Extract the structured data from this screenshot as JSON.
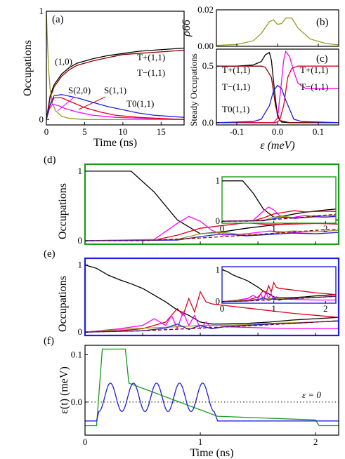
{
  "colors": {
    "black": "#000000",
    "red": "#e0001b",
    "blue": "#1f1fe0",
    "magenta": "#ff00ff",
    "olive": "#9a9a20",
    "green": "#1a9a1a",
    "darkred": "#8b0000",
    "frame_d": "#1a9a1a",
    "frame_e": "#1f1fe0"
  },
  "chart_data": [
    {
      "id": "a",
      "panel": "(a)",
      "type": "line",
      "xlabel": "Time (ns)",
      "ylabel": "Occupations",
      "xlim": [
        0,
        18
      ],
      "ylim": [
        -0.05,
        1.0
      ],
      "xticks": [
        "0",
        "5",
        "10",
        "15"
      ],
      "yticks": [
        "0",
        "1"
      ],
      "annotations": [
        "T+(1,1)",
        "T−(1,1)",
        "(1,0)",
        "S(2,0)",
        "S(1,1)",
        "T0(1,1)"
      ],
      "series": [
        {
          "name": "T+(1,1)",
          "color": "black",
          "x": [
            0,
            0.5,
            1,
            2,
            3,
            4,
            6,
            8,
            10,
            12,
            14,
            16,
            18
          ],
          "y": [
            0,
            0.22,
            0.32,
            0.42,
            0.48,
            0.52,
            0.56,
            0.59,
            0.61,
            0.63,
            0.64,
            0.65,
            0.66
          ]
        },
        {
          "name": "T−(1,1)",
          "color": "darkred",
          "x": [
            0,
            0.5,
            1,
            2,
            3,
            4,
            6,
            8,
            10,
            12,
            14,
            16,
            18
          ],
          "y": [
            0,
            0.2,
            0.3,
            0.4,
            0.46,
            0.5,
            0.54,
            0.57,
            0.6,
            0.61,
            0.62,
            0.63,
            0.64
          ]
        },
        {
          "name": "(1,0)",
          "color": "olive",
          "x": [
            0,
            0.15,
            0.3,
            0.5,
            0.8,
            1.2,
            2,
            3,
            5,
            18
          ],
          "y": [
            1.0,
            0.7,
            0.45,
            0.28,
            0.15,
            0.08,
            0.03,
            0.01,
            0.0,
            0.0
          ]
        },
        {
          "name": "S(2,0)",
          "color": "magenta",
          "x": [
            0,
            0.4,
            0.8,
            1.5,
            2.5,
            4,
            6,
            9,
            13,
            18
          ],
          "y": [
            0,
            0.1,
            0.14,
            0.13,
            0.1,
            0.07,
            0.04,
            0.02,
            0.01,
            0.0
          ]
        },
        {
          "name": "S(1,1)",
          "color": "red",
          "x": [
            0,
            0.4,
            1,
            2,
            3,
            5,
            7,
            9,
            12,
            18
          ],
          "y": [
            0,
            0.12,
            0.2,
            0.2,
            0.17,
            0.11,
            0.07,
            0.04,
            0.02,
            0.0
          ]
        },
        {
          "name": "T0(1,1)",
          "color": "blue",
          "x": [
            0,
            0.5,
            1,
            2,
            4,
            6,
            8,
            10,
            12,
            14,
            16,
            18
          ],
          "y": [
            0,
            0.14,
            0.22,
            0.23,
            0.2,
            0.16,
            0.12,
            0.09,
            0.06,
            0.04,
            0.03,
            0.02
          ]
        }
      ]
    },
    {
      "id": "b",
      "panel": "(b)",
      "type": "line",
      "ylabel": "ρ66",
      "xlim": [
        -0.15,
        0.15
      ],
      "ylim": [
        0,
        0.02
      ],
      "yticks": [
        "0.00",
        "0.02"
      ],
      "series": [
        {
          "name": "",
          "color": "olive",
          "x": [
            -0.15,
            -0.1,
            -0.06,
            -0.04,
            -0.02,
            -0.01,
            0.0,
            0.01,
            0.02,
            0.035,
            0.05,
            0.08,
            0.12,
            0.15
          ],
          "y": [
            0.0005,
            0.001,
            0.003,
            0.007,
            0.0135,
            0.0145,
            0.012,
            0.0125,
            0.0155,
            0.0155,
            0.01,
            0.004,
            0.0015,
            0.0008
          ]
        }
      ]
    },
    {
      "id": "c",
      "panel": "(c)",
      "type": "line",
      "xlabel": "ε (meV)",
      "ylabel": "Steady Occupations",
      "xlim": [
        -0.15,
        0.15
      ],
      "ylim": [
        -0.02,
        0.65
      ],
      "xticks": [
        "-0.1",
        "0.0",
        "0.1"
      ],
      "yticks": [
        "0.0",
        "0.5"
      ],
      "annotations": [
        "T+(1,1)",
        "T−(1,1)",
        "T0(1,1)",
        "T+(1,1)",
        "T−(1,1)"
      ],
      "series": [
        {
          "name": "T+(1,1)",
          "color": "black",
          "x": [
            -0.15,
            -0.1,
            -0.06,
            -0.04,
            -0.03,
            -0.02,
            -0.015,
            -0.008,
            0.0,
            0.01,
            0.03,
            0.15
          ],
          "y": [
            0.5,
            0.5,
            0.51,
            0.54,
            0.6,
            0.62,
            0.55,
            0.3,
            0.05,
            0.005,
            0.0,
            0.0
          ]
        },
        {
          "name": "T−(1,1)",
          "color": "darkred",
          "x": [
            -0.15,
            -0.1,
            -0.06,
            -0.04,
            -0.03,
            -0.015,
            -0.005,
            0.005,
            0.03,
            0.15
          ],
          "y": [
            0.5,
            0.5,
            0.5,
            0.5,
            0.49,
            0.4,
            0.15,
            0.02,
            0.0,
            0.0
          ]
        },
        {
          "name": "T+(1,1)",
          "color": "magenta",
          "x": [
            -0.15,
            -0.01,
            0.0,
            0.008,
            0.015,
            0.02,
            0.03,
            0.04,
            0.05,
            0.07,
            0.15
          ],
          "y": [
            0.0,
            0.0,
            0.04,
            0.3,
            0.55,
            0.63,
            0.58,
            0.45,
            0.35,
            0.3,
            0.3
          ]
        },
        {
          "name": "T−(1,1)",
          "color": "red",
          "x": [
            -0.15,
            -0.005,
            0.005,
            0.015,
            0.025,
            0.035,
            0.05,
            0.07,
            0.15
          ],
          "y": [
            0.0,
            0.0,
            0.02,
            0.15,
            0.4,
            0.48,
            0.5,
            0.5,
            0.5
          ]
        },
        {
          "name": "T0(1,1)",
          "color": "blue",
          "x": [
            -0.15,
            -0.06,
            -0.04,
            -0.02,
            -0.01,
            0.0,
            0.01,
            0.02,
            0.04,
            0.06,
            0.15
          ],
          "y": [
            0.0,
            0.01,
            0.03,
            0.15,
            0.28,
            0.33,
            0.3,
            0.2,
            0.03,
            0.01,
            0.0
          ]
        }
      ]
    },
    {
      "id": "d",
      "panel": "(d)",
      "type": "line",
      "ylabel": "Occupations",
      "xlim": [
        0,
        2.2
      ],
      "ylim": [
        -0.05,
        1.1
      ],
      "yticks": [
        "0",
        "1"
      ],
      "inset": {
        "xticks": [
          "0",
          "1",
          "2"
        ],
        "yticks": [
          "0",
          "1"
        ]
      },
      "series": [
        {
          "name": "black",
          "color": "black",
          "x": [
            0,
            0.4,
            0.6,
            0.8,
            1.0,
            1.2,
            1.4,
            1.6,
            1.8,
            2.0,
            2.2
          ],
          "y": [
            1.0,
            1.0,
            0.7,
            0.3,
            0.1,
            0.13,
            0.18,
            0.22,
            0.25,
            0.28,
            0.3
          ]
        },
        {
          "name": "red",
          "color": "red",
          "x": [
            0,
            0.6,
            0.8,
            1.0,
            1.2,
            1.4,
            1.6,
            1.8,
            2.0,
            2.2
          ],
          "y": [
            0.0,
            0.01,
            0.08,
            0.18,
            0.22,
            0.26,
            0.23,
            0.24,
            0.25,
            0.24
          ]
        },
        {
          "name": "magenta",
          "color": "magenta",
          "x": [
            0,
            0.6,
            0.8,
            0.9,
            1.0,
            1.1,
            1.2,
            1.4,
            1.6,
            1.8,
            2.0,
            2.2
          ],
          "y": [
            0.0,
            0.02,
            0.25,
            0.35,
            0.28,
            0.15,
            0.08,
            0.1,
            0.14,
            0.12,
            0.1,
            0.12
          ]
        },
        {
          "name": "olive",
          "color": "olive",
          "x": [
            0,
            0.8,
            1.0,
            1.2,
            1.4,
            1.6,
            1.8,
            2.0,
            2.2
          ],
          "y": [
            0.0,
            0.02,
            0.1,
            0.12,
            0.08,
            0.1,
            0.14,
            0.13,
            0.15
          ]
        },
        {
          "name": "blue",
          "color": "blue",
          "x": [
            0,
            0.8,
            1.0,
            1.2,
            1.4,
            1.6,
            1.8,
            2.0,
            2.2
          ],
          "y": [
            0.0,
            0.01,
            0.06,
            0.1,
            0.07,
            0.09,
            0.11,
            0.1,
            0.12
          ]
        },
        {
          "name": "dashed",
          "color": "darkred",
          "x": [
            0,
            0.5,
            1.0,
            1.5,
            2.0,
            2.2
          ],
          "y": [
            0.0,
            0.0,
            0.04,
            0.09,
            0.15,
            0.17
          ]
        }
      ]
    },
    {
      "id": "e",
      "panel": "(e)",
      "type": "line",
      "ylabel": "Occupations",
      "xlim": [
        0,
        2.2
      ],
      "ylim": [
        -0.05,
        1.1
      ],
      "yticks": [
        "0",
        "1"
      ],
      "inset": {
        "xticks": [
          "0",
          "1",
          "2"
        ],
        "yticks": [
          "0",
          "1"
        ]
      },
      "series": [
        {
          "name": "black",
          "color": "black",
          "x": [
            0,
            0.1,
            0.2,
            0.3,
            0.4,
            0.5,
            0.6,
            0.7,
            0.8,
            0.9,
            1.0,
            1.1,
            1.2,
            1.4,
            1.6,
            1.8,
            2.0,
            2.2
          ],
          "y": [
            1.0,
            0.95,
            0.85,
            0.78,
            0.72,
            0.65,
            0.55,
            0.45,
            0.33,
            0.25,
            0.15,
            0.12,
            0.12,
            0.13,
            0.15,
            0.18,
            0.2,
            0.22
          ]
        },
        {
          "name": "red",
          "color": "red",
          "x": [
            0,
            0.3,
            0.5,
            0.7,
            0.8,
            0.85,
            0.9,
            0.95,
            1.0,
            1.05,
            1.1,
            1.2,
            1.4,
            1.6,
            1.8,
            2.0,
            2.2
          ],
          "y": [
            0.0,
            0.02,
            0.05,
            0.15,
            0.35,
            0.25,
            0.5,
            0.3,
            0.6,
            0.45,
            0.42,
            0.4,
            0.36,
            0.32,
            0.28,
            0.25,
            0.22
          ]
        },
        {
          "name": "magenta",
          "color": "magenta",
          "x": [
            0,
            0.3,
            0.5,
            0.6,
            0.7,
            0.75,
            0.8,
            0.85,
            0.9,
            0.95,
            1.0,
            1.05,
            1.1,
            1.2,
            1.4,
            1.6,
            1.8,
            2.0,
            2.2
          ],
          "y": [
            0.0,
            0.05,
            0.1,
            0.2,
            0.1,
            0.25,
            0.05,
            0.3,
            0.1,
            0.25,
            0.05,
            0.15,
            0.05,
            0.08,
            0.07,
            0.06,
            0.05,
            0.05,
            0.05
          ]
        },
        {
          "name": "olive",
          "color": "olive",
          "x": [
            0,
            0.4,
            0.8,
            1.0,
            1.2,
            1.4,
            1.6,
            1.8,
            2.0,
            2.2
          ],
          "y": [
            0.0,
            0.05,
            0.08,
            0.1,
            0.1,
            0.11,
            0.13,
            0.14,
            0.15,
            0.16
          ]
        },
        {
          "name": "blue",
          "color": "blue",
          "x": [
            0,
            0.5,
            0.7,
            0.8,
            0.9,
            1.0,
            1.1,
            1.2,
            1.4,
            1.6,
            1.8,
            2.0,
            2.2
          ],
          "y": [
            0.0,
            0.02,
            0.06,
            0.12,
            0.04,
            0.1,
            0.05,
            0.08,
            0.1,
            0.12,
            0.13,
            0.15,
            0.17
          ]
        },
        {
          "name": "dashed",
          "color": "darkred",
          "x": [
            0,
            0.5,
            1.0,
            1.5,
            2.0,
            2.2
          ],
          "y": [
            0.0,
            0.02,
            0.06,
            0.1,
            0.15,
            0.17
          ]
        }
      ]
    },
    {
      "id": "f",
      "panel": "(f)",
      "type": "line",
      "xlabel": "Time (ns)",
      "ylabel": "ε(t) (meV)",
      "xlim": [
        0,
        2.2
      ],
      "ylim": [
        -0.07,
        0.12
      ],
      "xticks": [
        "0",
        "1",
        "2"
      ],
      "yticks": [
        "0.0",
        "0.1"
      ],
      "annotations": [
        "ε = 0"
      ],
      "series": [
        {
          "name": "green",
          "color": "green",
          "x": [
            0,
            0.1,
            0.15,
            0.35,
            0.38,
            1.15,
            2.0,
            2.03,
            2.2
          ],
          "y": [
            -0.05,
            -0.05,
            0.112,
            0.112,
            0.04,
            -0.03,
            -0.038,
            -0.05,
            -0.05
          ]
        },
        {
          "name": "blue",
          "color": "blue",
          "x": [
            0,
            0.1,
            0.12,
            1.12,
            1.15,
            2.2
          ],
          "y": [
            -0.04,
            -0.04,
            -0.02,
            -0.02,
            -0.04,
            -0.04
          ]
        }
      ]
    }
  ]
}
